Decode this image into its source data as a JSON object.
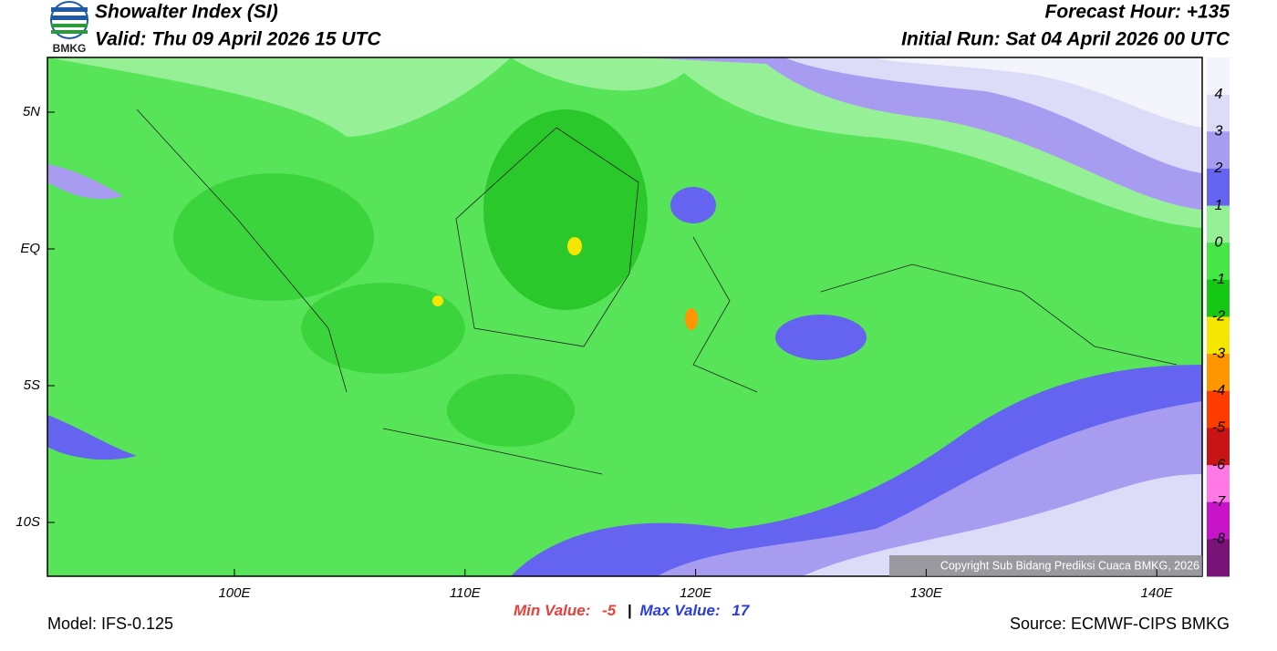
{
  "header": {
    "logo_text": "BMKG",
    "title": "Showalter Index (SI)",
    "valid": "Valid: Thu 09 April 2026 15 UTC",
    "forecast_hour": "Forecast Hour: +135",
    "initial_run": "Initial Run: Sat 04 April 2026 00 UTC"
  },
  "map": {
    "lat_labels": [
      "5N",
      "EQ",
      "5S",
      "10S"
    ],
    "lon_labels": [
      "100E",
      "110E",
      "120E",
      "130E",
      "140E"
    ],
    "copyright": "Copyright Sub Bidang Prediksi Cuaca BMKG, 2026"
  },
  "colorbar": {
    "labels": [
      4,
      3,
      2,
      1,
      0,
      -1,
      -2,
      -3,
      -4,
      -5,
      -6,
      -7,
      -8
    ],
    "colors": [
      "#f4f4fc",
      "#dcdcf8",
      "#a89cf0",
      "#6464f0",
      "#96f096",
      "#46e646",
      "#14c814",
      "#f5e600",
      "#ff9600",
      "#ff3c00",
      "#c81414",
      "#ff78e6",
      "#c814c8",
      "#781478"
    ]
  },
  "footer": {
    "model": "Model: IFS-0.125",
    "min_label": "Min Value:",
    "min_value": -5,
    "separator": "|",
    "max_label": "Max Value:",
    "max_value": 17,
    "source": "Source: ECMWF-CIPS BMKG"
  }
}
